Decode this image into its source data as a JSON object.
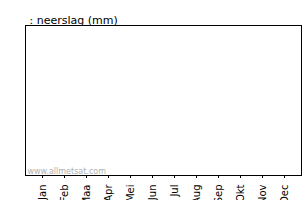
{
  "chart_data": {
    "type": "bar",
    "title": ": neerslag (mm)",
    "categories": [
      "Jan",
      "Feb",
      "Maa",
      "Apr",
      "Mei",
      "Jun",
      "Jul",
      "Aug",
      "Sep",
      "Okt",
      "Nov",
      "Dec"
    ],
    "values": [
      null,
      null,
      null,
      null,
      null,
      null,
      null,
      null,
      null,
      null,
      null,
      null
    ],
    "annotations": [
      "www.allmetsat.com"
    ],
    "tick_labels": "x"
  }
}
